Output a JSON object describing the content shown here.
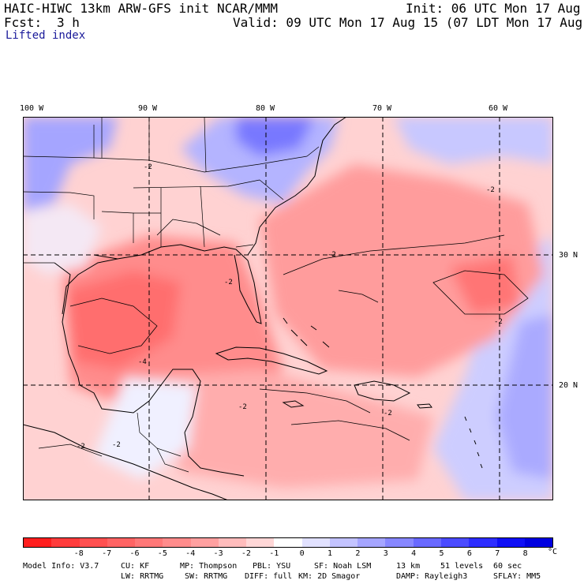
{
  "header": {
    "model": "HAIC-HIWC 13km ARW-GFS init",
    "org": "NCAR/MMM",
    "init": "Init: 06 UTC Mon 17 Aug 15",
    "fcst_label": "Fcst:",
    "fcst_value": "3 h",
    "valid": "Valid: 09 UTC Mon 17 Aug 15 (07 LDT Mon 17 Aug 15)",
    "field": "Lifted index"
  },
  "map": {
    "lon_labels": [
      "100 W",
      "90 W",
      "80 W",
      "70 W",
      "60 W"
    ],
    "lat_labels": [
      "30 N",
      "20 N"
    ],
    "contour_labels": [
      "-2",
      "-4",
      "-2",
      "-2",
      "-2",
      "-2",
      "-2",
      "-2",
      "-2",
      "-2",
      "-4"
    ],
    "colors": {
      "land_line": "#000000",
      "grid_line": "#000000",
      "contour": "#000000"
    }
  },
  "colorbar": {
    "unit": "°C",
    "ticks": [
      "-8",
      "-7",
      "-6",
      "-5",
      "-4",
      "-3",
      "-2",
      "-1",
      "0",
      "1",
      "2",
      "3",
      "4",
      "5",
      "6",
      "7",
      "8"
    ],
    "colors": [
      "#ff1e1e",
      "#ff3c3c",
      "#ff5050",
      "#ff6464",
      "#ff7878",
      "#ff8c8c",
      "#ffa0a0",
      "#ffbcbc",
      "#ffd7d7",
      "#ffffff",
      "#e1e1ff",
      "#c3c3ff",
      "#a5a5ff",
      "#8787ff",
      "#6969ff",
      "#4b4bff",
      "#2d2dff",
      "#0f0ff5",
      "#0000e0"
    ]
  },
  "model_info": {
    "line1": [
      "Model Info: V3.7",
      "CU: KF",
      "MP: Thompson",
      "PBL: YSU",
      "SF: Noah LSM",
      "13 km",
      "51 levels",
      "60 sec"
    ],
    "line2": [
      "LW: RRTMG",
      "SW: RRTMG",
      "DIFF: full",
      "KM: 2D Smagor",
      "DAMP: Rayleigh3",
      "SFLAY: MM5"
    ]
  }
}
